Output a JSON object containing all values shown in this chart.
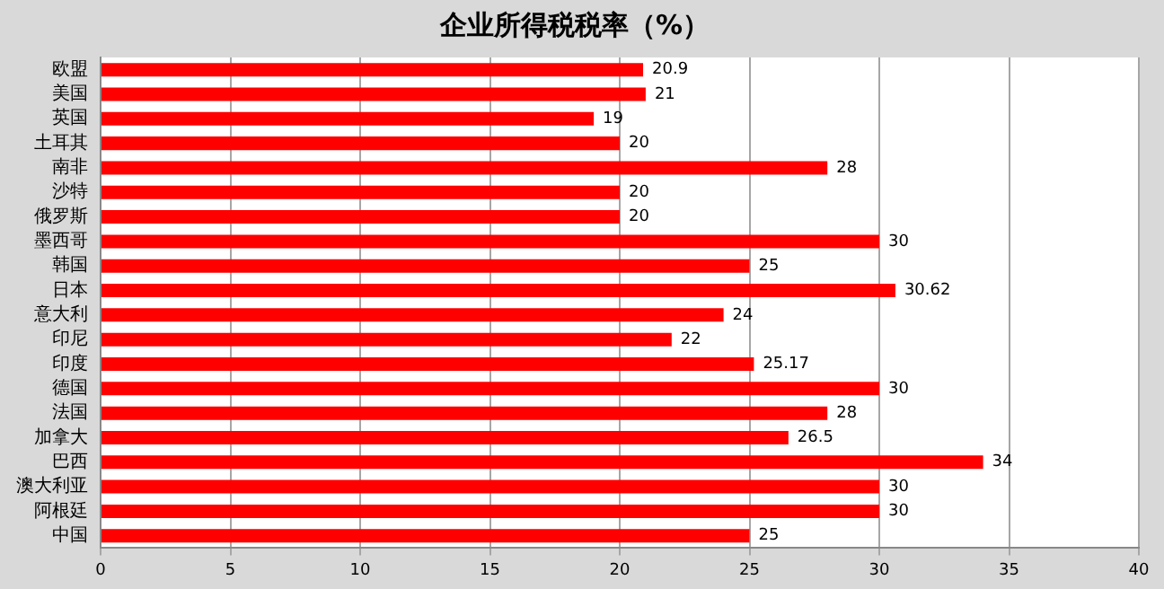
{
  "chart_data": {
    "type": "bar",
    "orientation": "horizontal",
    "title": "企业所得税税率（%）",
    "categories": [
      "欧盟",
      "美国",
      "英国",
      "土耳其",
      "南非",
      "沙特",
      "俄罗斯",
      "墨西哥",
      "韩国",
      "日本",
      "意大利",
      "印尼",
      "印度",
      "德国",
      "法国",
      "加拿大",
      "巴西",
      "澳大利亚",
      "阿根廷",
      "中国"
    ],
    "values": [
      20.9,
      21,
      19,
      20,
      28,
      20,
      20,
      30,
      25,
      30.62,
      24,
      22,
      25.17,
      30,
      28,
      26.5,
      34,
      30,
      30,
      25
    ],
    "color": "#ff0000",
    "xlim": [
      0,
      40
    ],
    "xticks": [
      0,
      5,
      10,
      15,
      20,
      25,
      30,
      35,
      40
    ],
    "grid": "x",
    "data_labels": true,
    "legend": false
  }
}
